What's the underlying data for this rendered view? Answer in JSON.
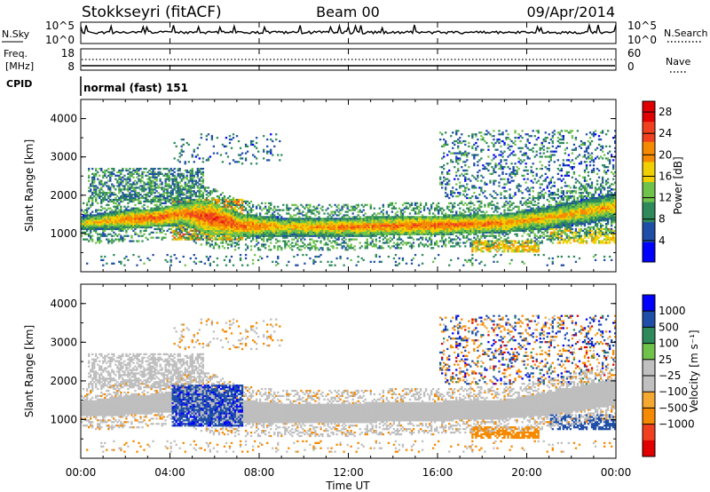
{
  "header": {
    "station": "Stokkseyri (fitACF)",
    "beam": "Beam 00",
    "date": "09/Apr/2014"
  },
  "noise_panel": {
    "left_label": "N.Sky",
    "right_label": "N.Search",
    "left_ticks": [
      "10^5",
      "10^0"
    ],
    "right_ticks": [
      "10^5",
      "10^0"
    ]
  },
  "freq_panel": {
    "left_label_1": "Freq.",
    "left_label_2": "[MHz]",
    "right_label": "Nave",
    "left_ticks": [
      "18",
      "8"
    ],
    "right_ticks": [
      "60",
      "0"
    ]
  },
  "cpid_panel": {
    "label": "CPID",
    "program": "normal (fast) 151"
  },
  "colors": {
    "power_scale": [
      "#0000ff",
      "#1f4ea8",
      "#2e8a5a",
      "#6fc24a",
      "#f0d000",
      "#f58a00",
      "#f04020",
      "#e00000"
    ],
    "velocity_scale": [
      "#e00000",
      "#f04020",
      "#f58a00",
      "#f5a830",
      "#c0c0c0",
      "#c0c0c0",
      "#6fc24a",
      "#2e8a5a",
      "#1f4ea8",
      "#0000ff"
    ],
    "ground_scatter": "#bebebe"
  },
  "chart_data": [
    {
      "type": "heatmap",
      "name": "power",
      "ylabel": "Slant Range [km]",
      "yticks": [
        "1000",
        "2000",
        "3000",
        "4000"
      ],
      "ylim": [
        0,
        4500
      ],
      "xlim": [
        "00:00",
        "24:00"
      ],
      "colorbar_label": "Power [dB]",
      "colorbar_ticks": [
        "4",
        "8",
        "12",
        "16",
        "20",
        "24",
        "28"
      ],
      "colorbar_range": [
        0,
        30
      ],
      "main_band_km": [
        {
          "t": 0,
          "center": 1250,
          "halfwidth": 200,
          "db": 18
        },
        {
          "t": 2,
          "center": 1350,
          "halfwidth": 250,
          "db": 22
        },
        {
          "t": 3.5,
          "center": 1400,
          "halfwidth": 250,
          "db": 24
        },
        {
          "t": 4.5,
          "center": 1500,
          "halfwidth": 300,
          "db": 22
        },
        {
          "t": 5.8,
          "center": 1400,
          "halfwidth": 450,
          "db": 26
        },
        {
          "t": 7,
          "center": 1200,
          "halfwidth": 300,
          "db": 24
        },
        {
          "t": 9,
          "center": 1150,
          "halfwidth": 250,
          "db": 20
        },
        {
          "t": 12,
          "center": 1150,
          "halfwidth": 250,
          "db": 22
        },
        {
          "t": 16,
          "center": 1200,
          "halfwidth": 250,
          "db": 24
        },
        {
          "t": 19,
          "center": 1250,
          "halfwidth": 250,
          "db": 22
        },
        {
          "t": 21,
          "center": 1400,
          "halfwidth": 300,
          "db": 20
        },
        {
          "t": 24,
          "center": 1700,
          "halfwidth": 350,
          "db": 20
        }
      ]
    },
    {
      "type": "heatmap",
      "name": "velocity",
      "ylabel": "Slant Range [km]",
      "xlabel": "Time UT",
      "yticks": [
        "1000",
        "2000",
        "3000",
        "4000"
      ],
      "xticks": [
        "00:00",
        "04:00",
        "08:00",
        "12:00",
        "16:00",
        "20:00",
        "00:00"
      ],
      "ylim": [
        0,
        4500
      ],
      "colorbar_label": "Velocity [m s⁻¹]",
      "colorbar_ticks": [
        "1000",
        "500",
        "100",
        "25",
        "−25",
        "−100",
        "−500",
        "−1000"
      ]
    }
  ]
}
